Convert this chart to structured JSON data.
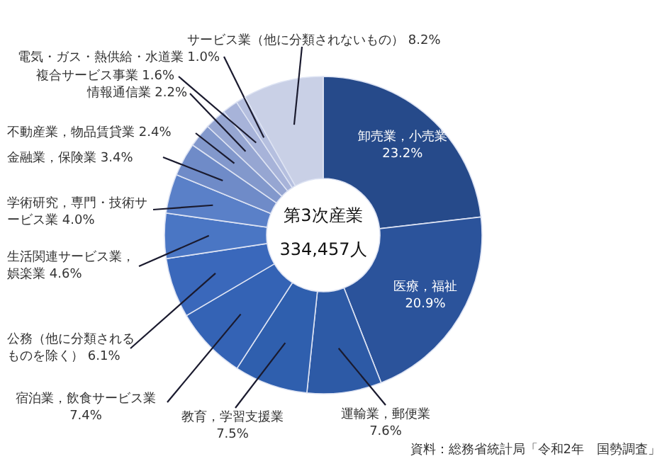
{
  "chart_data": {
    "type": "donut",
    "title": "第3次産業",
    "subtitle": "334,457人",
    "categories": [
      "卸売業，小売業",
      "医療，福祉",
      "運輸業，郵便業",
      "教育，学習支援業",
      "宿泊業，飲食サービス業",
      "公務（他に分類されるものを除く）",
      "生活関連サービス業，娯楽業",
      "学術研究，専門・技術サービス業",
      "金融業，保険業",
      "不動産業，物品賃貸業",
      "情報通信業",
      "複合サービス事業",
      "電気・ガス・熱供給・水道業",
      "サービス業（他に分類されないもの）"
    ],
    "values": [
      23.2,
      20.9,
      7.6,
      7.5,
      7.4,
      6.1,
      4.6,
      4.0,
      3.4,
      2.4,
      2.2,
      1.6,
      1.0,
      8.2
    ],
    "value_labels": [
      "23.2%",
      "20.9%",
      "7.6%",
      "7.5%",
      "7.4%",
      "6.1%",
      "4.6%",
      "4.0%",
      "3.4%",
      "2.4%",
      "2.2%",
      "1.6%",
      "1.0%",
      "8.2%"
    ],
    "colors": [
      "#264a8a",
      "#2b539b",
      "#2d5aa6",
      "#2f5fae",
      "#3463b5",
      "#3a68bb",
      "#4a76c4",
      "#5a80c8",
      "#6f8bc8",
      "#8298cc",
      "#96a6d2",
      "#a7b3d9",
      "#b5bfdf",
      "#c9d0e6"
    ],
    "annotations": [
      "資料：総務省統計局「令和2年　国勢調査」"
    ]
  }
}
